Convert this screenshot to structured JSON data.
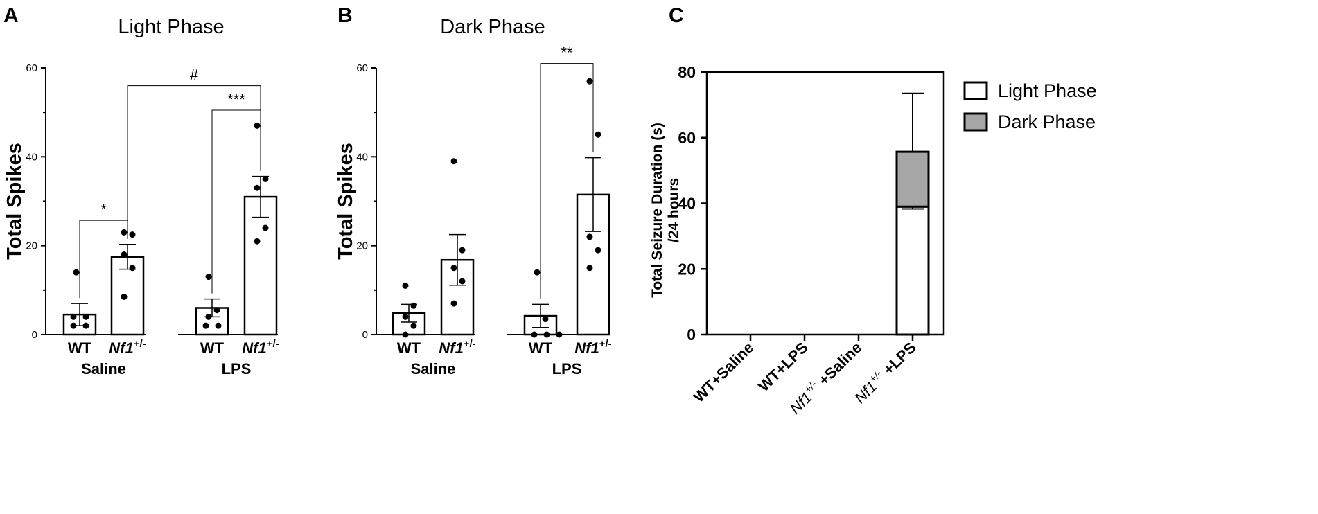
{
  "panels": {
    "A": {
      "letter": "A",
      "title": "Light Phase",
      "ylabel": "Total Spikes",
      "yticks": [
        "0",
        "20",
        "40",
        "60"
      ],
      "ylim": [
        0,
        60
      ],
      "categories": [
        {
          "base": "WT",
          "sup": "",
          "italic": false
        },
        {
          "base": "Nf1",
          "sup": "+/-",
          "italic": true
        },
        {
          "base": "WT",
          "sup": "",
          "italic": false
        },
        {
          "base": "Nf1",
          "sup": "+/-",
          "italic": true
        }
      ],
      "groups": [
        "Saline",
        "LPS"
      ],
      "bars": [
        4.5,
        17.5,
        6.0,
        31.0
      ],
      "sem": [
        2.5,
        2.8,
        2.0,
        4.6
      ],
      "points": [
        [
          14,
          4,
          4,
          2,
          2
        ],
        [
          23,
          22.5,
          18,
          15,
          8.5
        ],
        [
          13,
          5.5,
          4,
          2,
          2
        ],
        [
          47,
          35,
          33,
          24,
          21
        ]
      ],
      "comparisons": [
        {
          "label": "*",
          "from": 0,
          "to": 1,
          "y": 25.7
        },
        {
          "label": "***",
          "from": 2,
          "to": 3,
          "y": 50.5
        },
        {
          "label": "#",
          "from": 1,
          "to": 3,
          "y": 56
        }
      ]
    },
    "B": {
      "letter": "B",
      "title": "Dark Phase",
      "ylabel": "Total Spikes",
      "yticks": [
        "0",
        "20",
        "40",
        "60"
      ],
      "ylim": [
        0,
        60
      ],
      "categories": [
        {
          "base": "WT",
          "sup": "",
          "italic": false
        },
        {
          "base": "Nf1",
          "sup": "+/-",
          "italic": true
        },
        {
          "base": "WT",
          "sup": "",
          "italic": false
        },
        {
          "base": "Nf1",
          "sup": "+/-",
          "italic": true
        }
      ],
      "groups": [
        "Saline",
        "LPS"
      ],
      "bars": [
        4.8,
        16.8,
        4.2,
        31.5
      ],
      "sem": [
        2.0,
        5.7,
        2.6,
        8.3
      ],
      "points": [
        [
          11,
          6.5,
          4,
          2,
          0
        ],
        [
          39,
          19,
          15,
          12,
          7
        ],
        [
          14,
          3.5,
          0,
          0,
          0
        ],
        [
          57,
          45,
          22,
          19,
          15
        ]
      ],
      "comparisons": [
        {
          "label": "**",
          "from": 2,
          "to": 3,
          "y": 61
        }
      ]
    },
    "C": {
      "letter": "C",
      "ylabel_line1": "Total Seizure Duration (s)",
      "ylabel_line2": "/24 hours",
      "yticks": [
        "0",
        "20",
        "40",
        "60",
        "80"
      ],
      "ylim": [
        0,
        80
      ],
      "categories": [
        {
          "prefix": "WT+Saline",
          "base": "",
          "sup": "",
          "suffix": ""
        },
        {
          "prefix": "WT+LPS",
          "base": "",
          "sup": "",
          "suffix": ""
        },
        {
          "prefix": "",
          "base": "Nf1",
          "sup": "+/-",
          "suffix": " +Saline"
        },
        {
          "prefix": "",
          "base": "Nf1",
          "sup": "+/-",
          "suffix": " +LPS"
        }
      ],
      "light": [
        0,
        0,
        0,
        39
      ],
      "dark": [
        0,
        0,
        0,
        16.7
      ],
      "light_err_low": [
        0,
        0,
        0,
        38.3
      ],
      "dark_err_high": [
        0,
        0,
        0,
        73.5
      ],
      "legend": [
        {
          "label": "Light Phase",
          "color": "#ffffff"
        },
        {
          "label": "Dark Phase",
          "color": "#a6a6a6"
        }
      ]
    }
  },
  "chart_data": [
    {
      "type": "bar",
      "title": "Light Phase",
      "ylabel": "Total Spikes",
      "ylim": [
        0,
        60
      ],
      "categories": [
        "WT Saline",
        "Nf1+/- Saline",
        "WT LPS",
        "Nf1+/- LPS"
      ],
      "values": [
        4.5,
        17.5,
        6.0,
        31.0
      ],
      "sem": [
        2.5,
        2.8,
        2.0,
        4.6
      ],
      "points": [
        [
          14,
          4,
          4,
          2,
          2
        ],
        [
          23,
          22.5,
          18,
          15,
          8.5
        ],
        [
          13,
          5.5,
          4,
          2,
          2
        ],
        [
          47,
          35,
          33,
          24,
          21
        ]
      ],
      "annotations": [
        "*",
        "***",
        "#"
      ]
    },
    {
      "type": "bar",
      "title": "Dark Phase",
      "ylabel": "Total Spikes",
      "ylim": [
        0,
        60
      ],
      "categories": [
        "WT Saline",
        "Nf1+/- Saline",
        "WT LPS",
        "Nf1+/- LPS"
      ],
      "values": [
        4.8,
        16.8,
        4.2,
        31.5
      ],
      "sem": [
        2.0,
        5.7,
        2.6,
        8.3
      ],
      "points": [
        [
          11,
          6.5,
          4,
          2,
          0
        ],
        [
          39,
          19,
          15,
          12,
          7
        ],
        [
          14,
          3.5,
          0,
          0,
          0
        ],
        [
          57,
          45,
          22,
          19,
          15
        ]
      ],
      "annotations": [
        "**"
      ]
    },
    {
      "type": "bar",
      "stacked": true,
      "ylabel": "Total Seizure Duration (s) /24 hours",
      "ylim": [
        0,
        80
      ],
      "categories": [
        "WT+Saline",
        "WT+LPS",
        "Nf1+/- +Saline",
        "Nf1+/- +LPS"
      ],
      "series": [
        {
          "name": "Light Phase",
          "values": [
            0,
            0,
            0,
            39
          ]
        },
        {
          "name": "Dark Phase",
          "values": [
            0,
            0,
            0,
            16.7
          ]
        }
      ],
      "legend": "right"
    }
  ]
}
